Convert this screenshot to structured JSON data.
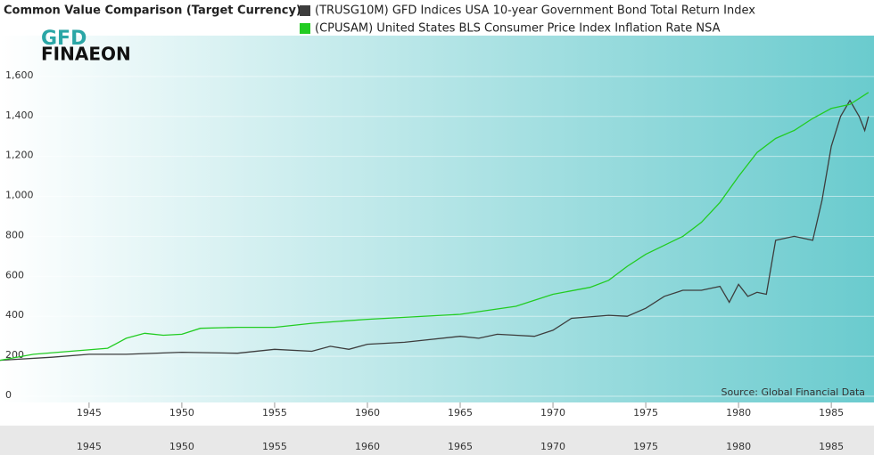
{
  "chart_data": {
    "type": "line",
    "title": "Common Value Comparison (Target Currency)",
    "logo_top": "GFD",
    "logo_bottom": "FINAEON",
    "source": "Source: Global Financial Data",
    "xlim": [
      1940.2,
      1987.3
    ],
    "xticks": [
      1945,
      1950,
      1955,
      1960,
      1965,
      1970,
      1975,
      1980,
      1985
    ],
    "ylim": [
      0,
      1800
    ],
    "yticks": [
      0,
      200,
      400,
      600,
      800,
      {
        "value": 1000,
        "label": "1,000"
      },
      {
        "value": 1200,
        "label": "1,200"
      },
      {
        "value": 1400,
        "label": "1,400"
      },
      {
        "value": 1600,
        "label": "1,600"
      }
    ],
    "grid": true,
    "series": [
      {
        "name": "(TRUSG10M) GFD Indices USA 10-year Government Bond Total Return Index",
        "color": "#3d3d3d",
        "x": [
          1940.2,
          1943,
          1945,
          1947,
          1950,
          1953,
          1955,
          1957,
          1958,
          1959,
          1960,
          1962,
          1965,
          1966,
          1967,
          1968,
          1969,
          1970,
          1971,
          1973,
          1974,
          1975,
          1976,
          1977,
          1978,
          1979,
          1979.5,
          1980,
          1980.5,
          1981,
          1981.5,
          1982,
          1983,
          1984,
          1984.5,
          1985,
          1985.5,
          1986,
          1986.5,
          1986.8,
          1987
        ],
        "values": [
          180,
          195,
          210,
          210,
          220,
          215,
          235,
          225,
          250,
          235,
          260,
          270,
          300,
          290,
          310,
          305,
          300,
          330,
          390,
          405,
          400,
          440,
          500,
          530,
          530,
          550,
          470,
          560,
          500,
          520,
          510,
          780,
          800,
          780,
          980,
          1250,
          1400,
          1480,
          1400,
          1330,
          1400
        ]
      },
      {
        "name": "(CPUSAM) United States BLS Consumer Price Index Inflation Rate NSA",
        "color": "#22cc22",
        "x": [
          1940.2,
          1942,
          1944,
          1946,
          1947,
          1948,
          1949,
          1950,
          1951,
          1953,
          1955,
          1957,
          1960,
          1965,
          1968,
          1970,
          1972,
          1973,
          1974,
          1975,
          1977,
          1978,
          1979,
          1980,
          1981,
          1982,
          1983,
          1984,
          1985,
          1986,
          1987
        ],
        "values": [
          180,
          210,
          225,
          240,
          290,
          315,
          305,
          310,
          340,
          345,
          345,
          365,
          385,
          410,
          450,
          510,
          545,
          580,
          650,
          710,
          800,
          870,
          970,
          1100,
          1220,
          1290,
          1330,
          1390,
          1440,
          1460,
          1520
        ]
      }
    ]
  }
}
